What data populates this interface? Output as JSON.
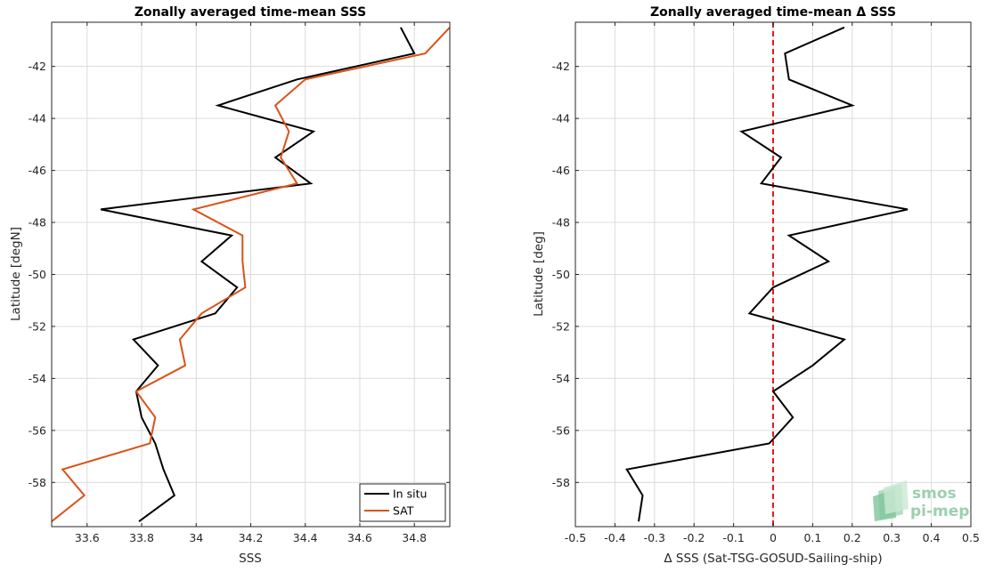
{
  "logo": {
    "line1": "smos",
    "line2": "pi-mep"
  },
  "chart_data": [
    {
      "type": "line",
      "title": "Zonally averaged time-mean SSS",
      "xlabel": "SSS",
      "ylabel": "Latitude [degN]",
      "xlim": [
        33.47,
        34.93
      ],
      "ylim": [
        -59.7,
        -40.3
      ],
      "xticks": [
        33.6,
        33.8,
        34,
        34.2,
        34.4,
        34.6,
        34.8
      ],
      "xtick_labels": [
        "33.6",
        "33.8",
        "34",
        "34.2",
        "34.4",
        "34.6",
        "34.8"
      ],
      "yticks": [
        -58,
        -56,
        -54,
        -52,
        -50,
        -48,
        -46,
        -44,
        -42
      ],
      "ytick_labels": [
        "-58",
        "-56",
        "-54",
        "-52",
        "-50",
        "-48",
        "-46",
        "-44",
        "-42"
      ],
      "grid": true,
      "legend_position": "bottom-right",
      "series": [
        {
          "name": "In situ",
          "color": "#000000",
          "points": [
            [
              34.75,
              -40.5
            ],
            [
              34.8,
              -41.5
            ],
            [
              34.37,
              -42.5
            ],
            [
              34.08,
              -43.5
            ],
            [
              34.43,
              -44.5
            ],
            [
              34.29,
              -45.5
            ],
            [
              34.42,
              -46.5
            ],
            [
              33.65,
              -47.5
            ],
            [
              34.13,
              -48.5
            ],
            [
              34.02,
              -49.5
            ],
            [
              34.15,
              -50.5
            ],
            [
              34.07,
              -51.5
            ],
            [
              33.77,
              -52.5
            ],
            [
              33.86,
              -53.5
            ],
            [
              33.78,
              -54.5
            ],
            [
              33.8,
              -55.5
            ],
            [
              33.85,
              -56.5
            ],
            [
              33.88,
              -57.5
            ],
            [
              33.92,
              -58.5
            ],
            [
              33.79,
              -59.5
            ]
          ]
        },
        {
          "name": "SAT",
          "color": "#d95319",
          "points": [
            [
              34.93,
              -40.5
            ],
            [
              34.84,
              -41.5
            ],
            [
              34.4,
              -42.5
            ],
            [
              34.29,
              -43.5
            ],
            [
              34.34,
              -44.5
            ],
            [
              34.31,
              -45.5
            ],
            [
              34.37,
              -46.5
            ],
            [
              33.99,
              -47.5
            ],
            [
              34.17,
              -48.5
            ],
            [
              34.17,
              -49.5
            ],
            [
              34.18,
              -50.5
            ],
            [
              34.02,
              -51.5
            ],
            [
              33.94,
              -52.5
            ],
            [
              33.96,
              -53.5
            ],
            [
              33.78,
              -54.5
            ],
            [
              33.85,
              -55.5
            ],
            [
              33.83,
              -56.5
            ],
            [
              33.51,
              -57.5
            ],
            [
              33.59,
              -58.5
            ],
            [
              33.47,
              -59.5
            ]
          ]
        }
      ]
    },
    {
      "type": "line",
      "title": "Zonally averaged time-mean Δ SSS",
      "xlabel": "Δ SSS (Sat-TSG-GOSUD-Sailing-ship)",
      "ylabel": "Latitude [deg]",
      "xlim": [
        -0.5,
        0.5
      ],
      "ylim": [
        -59.7,
        -40.3
      ],
      "xticks": [
        -0.5,
        -0.4,
        -0.3,
        -0.2,
        -0.1,
        0,
        0.1,
        0.2,
        0.3,
        0.4,
        0.5
      ],
      "xtick_labels": [
        "-0.5",
        "-0.4",
        "-0.3",
        "-0.2",
        "-0.1",
        "0",
        "0.1",
        "0.2",
        "0.3",
        "0.4",
        "0.5"
      ],
      "yticks": [
        -58,
        -56,
        -54,
        -52,
        -50,
        -48,
        -46,
        -44,
        -42
      ],
      "ytick_labels": [
        "-58",
        "-56",
        "-54",
        "-52",
        "-50",
        "-48",
        "-46",
        "-44",
        "-42"
      ],
      "grid": true,
      "reference_line": {
        "x": 0,
        "color": "#e41a1c",
        "style": "dashed"
      },
      "series": [
        {
          "color": "#000000",
          "points": [
            [
              0.18,
              -40.5
            ],
            [
              0.03,
              -41.5
            ],
            [
              0.04,
              -42.5
            ],
            [
              0.2,
              -43.5
            ],
            [
              -0.08,
              -44.5
            ],
            [
              0.02,
              -45.5
            ],
            [
              -0.03,
              -46.5
            ],
            [
              0.34,
              -47.5
            ],
            [
              0.04,
              -48.5
            ],
            [
              0.14,
              -49.5
            ],
            [
              0.0,
              -50.5
            ],
            [
              -0.06,
              -51.5
            ],
            [
              0.18,
              -52.5
            ],
            [
              0.1,
              -53.5
            ],
            [
              0.0,
              -54.5
            ],
            [
              0.05,
              -55.5
            ],
            [
              -0.01,
              -56.5
            ],
            [
              -0.37,
              -57.5
            ],
            [
              -0.33,
              -58.5
            ],
            [
              -0.34,
              -59.5
            ]
          ]
        }
      ]
    }
  ]
}
